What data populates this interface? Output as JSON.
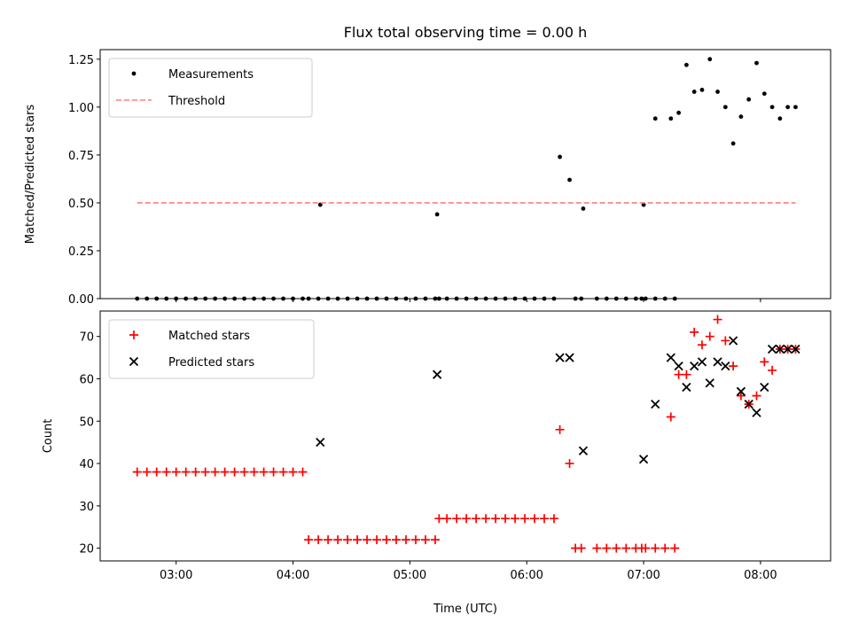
{
  "title": "Flux total observing time = 0.00 h",
  "chart_data": [
    {
      "type": "scatter",
      "ylabel": "Matched/Predicted stars",
      "xlabel": "",
      "ylim": [
        0.0,
        1.3
      ],
      "yticks": [
        0.0,
        0.25,
        0.5,
        0.75,
        1.0,
        1.25
      ],
      "ytick_labels": [
        "0.00",
        "0.25",
        "0.50",
        "0.75",
        "1.00",
        "1.25"
      ],
      "xlim_hours": [
        2.35,
        8.6
      ],
      "xticks_hours": [
        3,
        4,
        5,
        6,
        7,
        8
      ],
      "xtick_labels": [
        "03:00",
        "04:00",
        "05:00",
        "06:00",
        "07:00",
        "08:00"
      ],
      "show_xtick_labels": false,
      "grid": false,
      "legend_position": "top-left",
      "colors": {
        "measurements": "#000000",
        "threshold": "#ff7f7f"
      },
      "series": [
        {
          "name": "Measurements",
          "kind": "points",
          "x": [
            "02:40",
            "02:45",
            "02:50",
            "02:55",
            "03:00",
            "03:05",
            "03:10",
            "03:15",
            "03:20",
            "03:25",
            "03:30",
            "03:35",
            "03:40",
            "03:45",
            "03:50",
            "03:55",
            "04:00",
            "04:05",
            "04:08",
            "04:13",
            "04:18",
            "04:23",
            "04:28",
            "04:33",
            "04:38",
            "04:43",
            "04:48",
            "04:53",
            "04:58",
            "05:03",
            "05:08",
            "05:13",
            "05:15",
            "05:19",
            "05:24",
            "05:29",
            "05:34",
            "05:39",
            "05:44",
            "05:49",
            "05:54",
            "05:59",
            "06:04",
            "06:09",
            "06:14",
            "06:25",
            "06:28",
            "06:36",
            "06:41",
            "06:46",
            "06:51",
            "06:56",
            "06:59",
            "07:01",
            "07:06",
            "07:11",
            "07:16",
            "04:14",
            "05:14",
            "06:17",
            "06:22",
            "06:29",
            "07:00",
            "07:06",
            "07:14",
            "07:18",
            "07:22",
            "07:26",
            "07:30",
            "07:34",
            "07:38",
            "07:42",
            "07:46",
            "07:50",
            "07:54",
            "07:58",
            "08:02",
            "08:06",
            "08:10",
            "08:14",
            "08:18"
          ],
          "y": [
            0,
            0,
            0,
            0,
            0,
            0,
            0,
            0,
            0,
            0,
            0,
            0,
            0,
            0,
            0,
            0,
            0,
            0,
            0,
            0,
            0,
            0,
            0,
            0,
            0,
            0,
            0,
            0,
            0,
            0,
            0,
            0,
            0,
            0,
            0,
            0,
            0,
            0,
            0,
            0,
            0,
            0,
            0,
            0,
            0,
            0,
            0,
            0,
            0,
            0,
            0,
            0,
            0,
            0,
            0,
            0,
            0,
            0.49,
            0.44,
            0.74,
            0.62,
            0.47,
            0.49,
            0.94,
            0.94,
            0.97,
            1.22,
            1.08,
            1.09,
            1.25,
            1.08,
            1.0,
            0.81,
            0.95,
            1.04,
            1.23,
            1.07,
            1.0,
            0.94,
            1.0,
            1.0
          ]
        },
        {
          "name": "Threshold",
          "kind": "dashed-line",
          "x": [
            "02:40",
            "08:18"
          ],
          "y": [
            0.5,
            0.5
          ]
        }
      ]
    },
    {
      "type": "scatter",
      "ylabel": "Count",
      "xlabel": "Time (UTC)",
      "ylim": [
        17,
        76
      ],
      "yticks": [
        20,
        30,
        40,
        50,
        60,
        70
      ],
      "ytick_labels": [
        "20",
        "30",
        "40",
        "50",
        "60",
        "70"
      ],
      "xlim_hours": [
        2.35,
        8.6
      ],
      "xticks_hours": [
        3,
        4,
        5,
        6,
        7,
        8
      ],
      "xtick_labels": [
        "03:00",
        "04:00",
        "05:00",
        "06:00",
        "07:00",
        "08:00"
      ],
      "show_xtick_labels": true,
      "grid": false,
      "legend_position": "top-left",
      "colors": {
        "matched": "#ff0000",
        "predicted": "#000000"
      },
      "series": [
        {
          "name": "Matched stars",
          "kind": "plus",
          "x": [
            "02:40",
            "02:45",
            "02:50",
            "02:55",
            "03:00",
            "03:05",
            "03:10",
            "03:15",
            "03:20",
            "03:25",
            "03:30",
            "03:35",
            "03:40",
            "03:45",
            "03:50",
            "03:55",
            "04:00",
            "04:05",
            "04:08",
            "04:13",
            "04:18",
            "04:23",
            "04:28",
            "04:33",
            "04:38",
            "04:43",
            "04:48",
            "04:53",
            "04:58",
            "05:03",
            "05:08",
            "05:13",
            "05:15",
            "05:19",
            "05:24",
            "05:29",
            "05:34",
            "05:39",
            "05:44",
            "05:49",
            "05:54",
            "05:59",
            "06:04",
            "06:09",
            "06:14",
            "06:17",
            "06:22",
            "06:25",
            "06:28",
            "06:36",
            "06:41",
            "06:46",
            "06:51",
            "06:56",
            "06:59",
            "07:01",
            "07:06",
            "07:11",
            "07:16",
            "07:14",
            "07:18",
            "07:22",
            "07:26",
            "07:30",
            "07:34",
            "07:38",
            "07:42",
            "07:46",
            "07:50",
            "07:54",
            "07:58",
            "08:02",
            "08:06",
            "08:10",
            "08:14",
            "08:18"
          ],
          "y": [
            38,
            38,
            38,
            38,
            38,
            38,
            38,
            38,
            38,
            38,
            38,
            38,
            38,
            38,
            38,
            38,
            38,
            38,
            22,
            22,
            22,
            22,
            22,
            22,
            22,
            22,
            22,
            22,
            22,
            22,
            22,
            22,
            27,
            27,
            27,
            27,
            27,
            27,
            27,
            27,
            27,
            27,
            27,
            27,
            27,
            48,
            40,
            20,
            20,
            20,
            20,
            20,
            20,
            20,
            20,
            20,
            20,
            20,
            20,
            51,
            61,
            61,
            71,
            68,
            70,
            74,
            69,
            63,
            56,
            54,
            56,
            64,
            62,
            67,
            67,
            67
          ]
        },
        {
          "name": "Predicted stars",
          "kind": "x",
          "x": [
            "04:14",
            "05:14",
            "06:17",
            "06:22",
            "06:29",
            "07:00",
            "07:06",
            "07:14",
            "07:18",
            "07:22",
            "07:26",
            "07:30",
            "07:34",
            "07:38",
            "07:42",
            "07:46",
            "07:50",
            "07:54",
            "07:58",
            "08:02",
            "08:06",
            "08:10",
            "08:14",
            "08:18"
          ],
          "y": [
            45,
            61,
            65,
            65,
            43,
            41,
            54,
            65,
            63,
            58,
            63,
            64,
            59,
            64,
            63,
            69,
            57,
            54,
            52,
            58,
            67,
            67,
            67,
            67
          ]
        }
      ]
    }
  ]
}
